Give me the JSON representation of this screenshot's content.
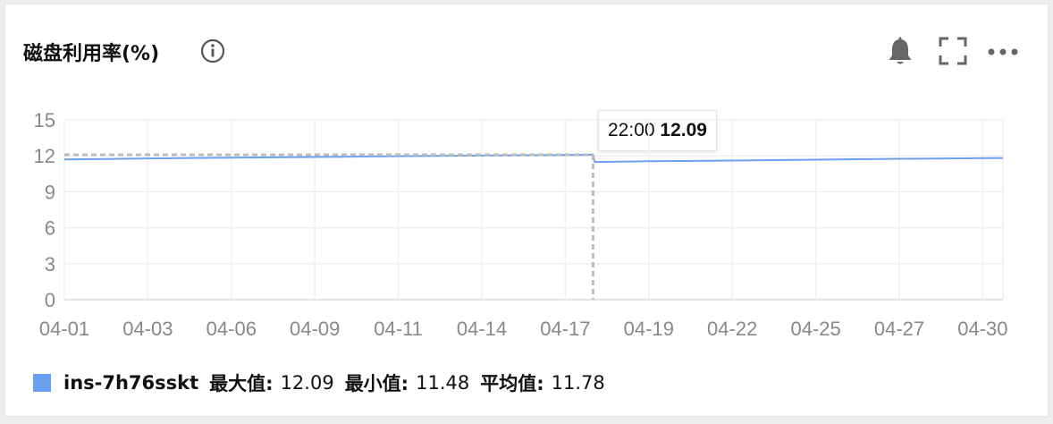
{
  "panel": {
    "title": "磁盘利用率(%)",
    "icons": [
      "info-icon",
      "bell-icon",
      "fullscreen-icon",
      "more-icon"
    ]
  },
  "chart_data": {
    "type": "line",
    "title": "磁盘利用率(%)",
    "x_ticks": [
      "04-01",
      "04-03",
      "04-06",
      "04-09",
      "04-11",
      "04-14",
      "04-17",
      "04-19",
      "04-22",
      "04-25",
      "04-27",
      "04-30"
    ],
    "y_ticks": [
      0,
      3,
      6,
      9,
      12,
      15
    ],
    "ylim": [
      0,
      15
    ],
    "grid": true,
    "series": [
      {
        "name": "ins-7h76sskt",
        "color": "#6aa0f0",
        "x": [
          "04-01",
          "04-03",
          "04-06",
          "04-09",
          "04-11",
          "04-14",
          "04-17",
          "04-17",
          "04-19",
          "04-22",
          "04-25",
          "04-27",
          "04-30"
        ],
        "values": [
          11.7,
          11.78,
          11.85,
          11.9,
          11.97,
          12.02,
          12.09,
          11.48,
          11.55,
          11.6,
          11.68,
          11.75,
          11.82
        ]
      }
    ],
    "tooltip": {
      "time": "22:00",
      "value": "12.09"
    },
    "reference_line": {
      "y": 12.09,
      "style": "dashed"
    },
    "legend": {
      "placement": "bottom-left",
      "series": "ins-7h76sskt",
      "max_label": "最大值:",
      "max_value": "12.09",
      "min_label": "最小值:",
      "min_value": "11.48",
      "avg_label": "平均值:",
      "avg_value": "11.78"
    }
  }
}
